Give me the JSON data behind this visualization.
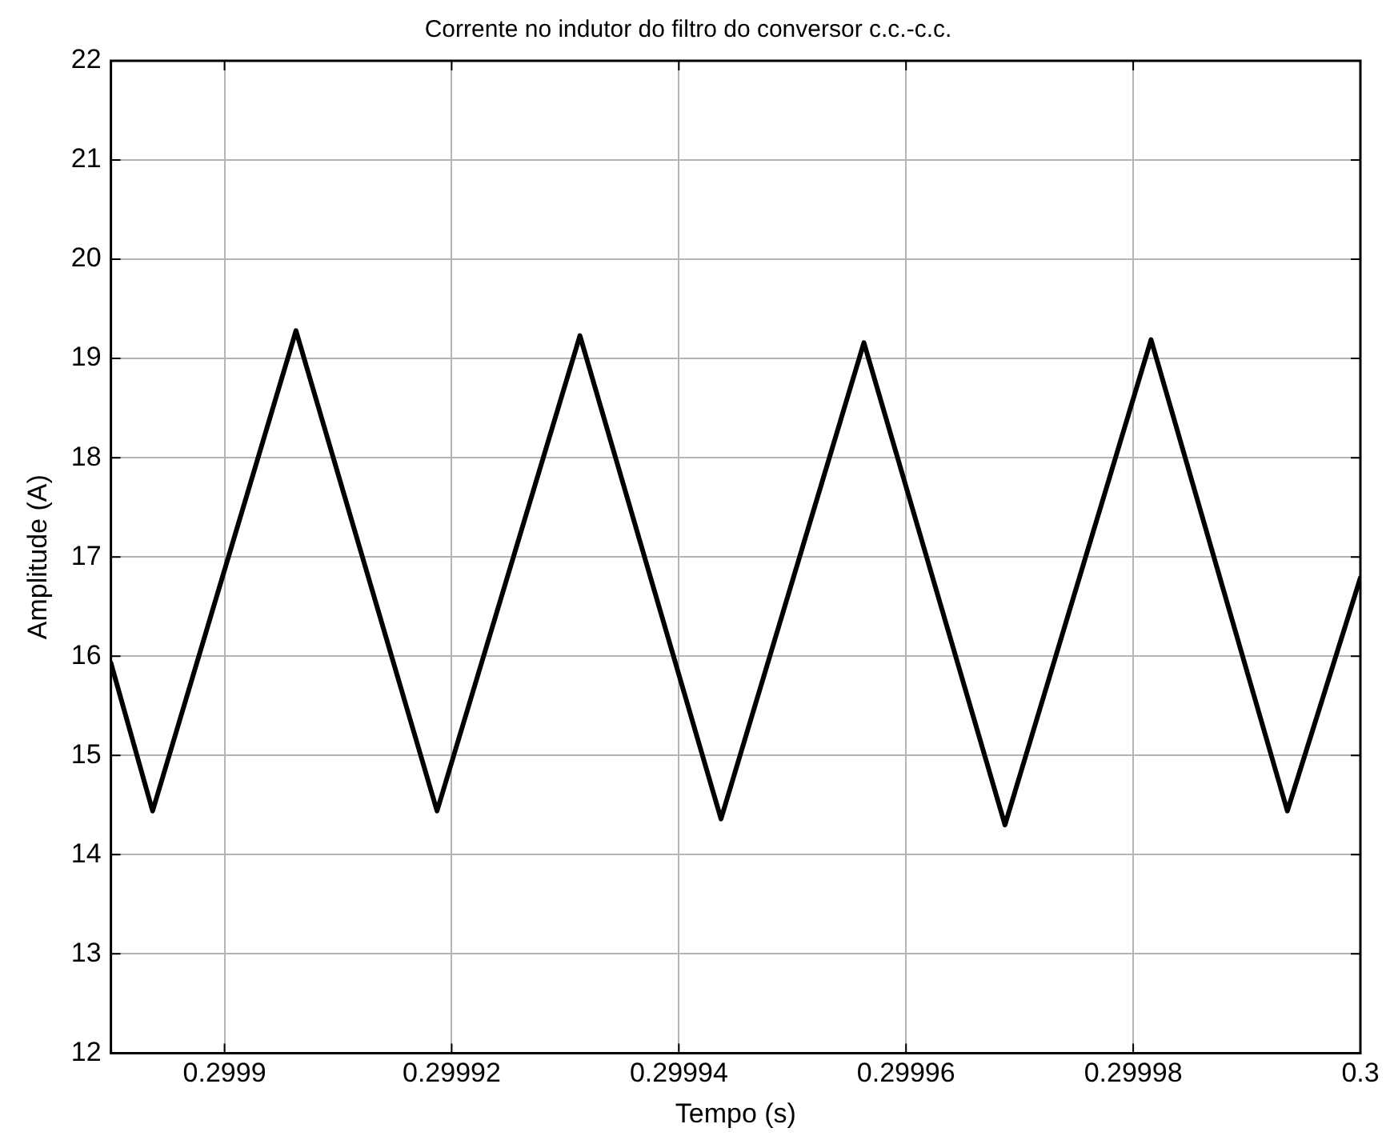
{
  "chart_data": {
    "type": "line",
    "title": "Corrente no indutor do filtro do conversor c.c.-c.c.",
    "xlabel": "Tempo (s)",
    "ylabel": "Amplitude (A)",
    "x": [
      0.29989,
      0.29989367,
      0.29990629,
      0.29991871,
      0.29993129,
      0.29994371,
      0.29995629,
      0.29996871,
      0.29998157,
      0.29999357,
      0.3
    ],
    "series": [
      {
        "color": "#000000",
        "values": [
          15.93,
          14.44,
          19.28,
          14.44,
          19.23,
          14.36,
          19.16,
          14.3,
          19.19,
          14.44,
          16.79
        ]
      }
    ],
    "xlim": [
      0.29989,
      0.3
    ],
    "xticks": [
      0.2999,
      0.29992,
      0.29994,
      0.29996,
      0.29998,
      0.3
    ],
    "ylim": [
      12,
      22
    ],
    "yticks": [
      12,
      13,
      14,
      15,
      16,
      17,
      18,
      19,
      20,
      21,
      22
    ],
    "grid": true,
    "legend": false,
    "marker": "none",
    "line_style": "solid"
  }
}
